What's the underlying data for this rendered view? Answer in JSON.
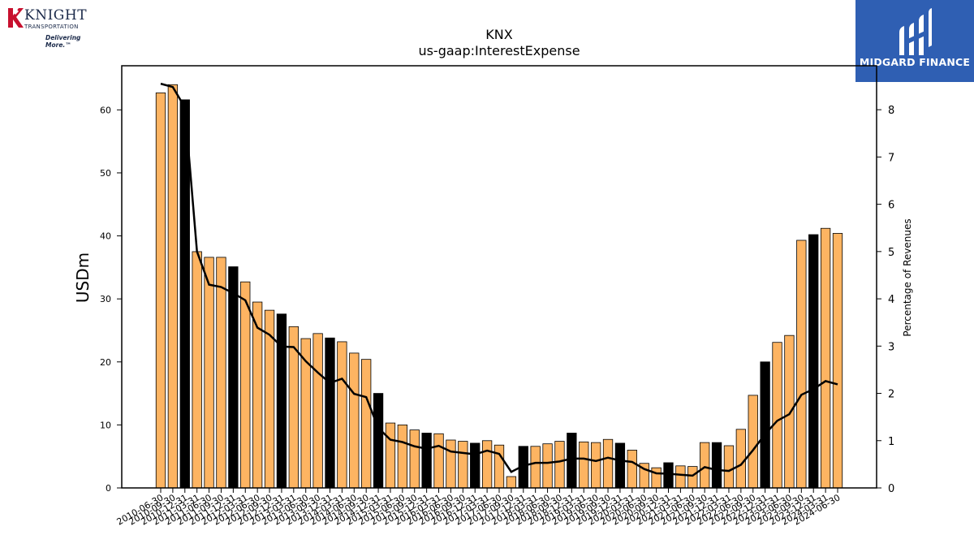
{
  "brand": {
    "company_name": "KNIGHT",
    "company_sub": "TRANSPORTATION",
    "company_tagline": "Delivering More.™",
    "publisher": "MIDGARD FINANCE",
    "colors": {
      "publisher_bg": "#2f5fb3",
      "company_red": "#c8102e",
      "company_navy": "#1b2a4a"
    }
  },
  "chart_data": {
    "type": "bar",
    "title": "KNX",
    "subtitle": "us-gaap:InterestExpense",
    "ylabel": "USDm",
    "y2label": "Percentage of Revenues",
    "ylim": [
      0,
      67
    ],
    "y2lim": [
      0,
      8.93
    ],
    "yticks": [
      0,
      10,
      20,
      30,
      40,
      50,
      60
    ],
    "y2ticks": [
      0,
      1,
      2,
      3,
      4,
      5,
      6,
      7,
      8
    ],
    "colors": {
      "bar": "#fdb462",
      "bar_highlight": "#000000",
      "line": "#000000"
    },
    "highlight_note": "black bars mark fiscal year-end (Dec) values",
    "categories": [
      "2010-06-30",
      "2010-09-30",
      "2010-12-31",
      "2011-03-31",
      "2011-06-30",
      "2011-09-30",
      "2011-12-31",
      "2012-03-31",
      "2012-06-30",
      "2012-09-30",
      "2012-12-31",
      "2013-03-31",
      "2013-06-30",
      "2013-09-30",
      "2013-12-31",
      "2014-03-31",
      "2014-06-30",
      "2014-09-30",
      "2014-12-31",
      "2015-03-31",
      "2015-06-30",
      "2015-09-30",
      "2015-12-31",
      "2016-03-31",
      "2016-06-30",
      "2016-09-30",
      "2016-12-31",
      "2017-03-31",
      "2017-06-30",
      "2017-09-30",
      "2017-12-31",
      "2018-03-31",
      "2018-06-30",
      "2018-09-30",
      "2018-12-31",
      "2019-03-31",
      "2019-06-30",
      "2019-09-30",
      "2019-12-31",
      "2020-03-31",
      "2020-06-30",
      "2020-09-30",
      "2020-12-31",
      "2021-03-31",
      "2021-06-30",
      "2021-09-30",
      "2021-12-31",
      "2022-03-31",
      "2022-06-30",
      "2022-09-30",
      "2022-12-31",
      "2023-03-31",
      "2023-06-30",
      "2023-09-30",
      "2023-12-31",
      "2024-03-31",
      "2024-06-30"
    ],
    "x_tick_labels": [
      "2010-06-30",
      "2010-09-30",
      "2010-12-31",
      "2011-03-31",
      "2011-06-30",
      "2011-09-30",
      "2011-12-31",
      "2012-03-31",
      "2012-06-30",
      "2012-09-30",
      "2012-12-31",
      "2013-03-31",
      "2013-06-30",
      "2013-09-30",
      "2013-12-31",
      "2014-03-31",
      "2014-06-30",
      "2014-09-30",
      "2014-12-31",
      "2015-03-31",
      "2015-06-30",
      "2015-09-30",
      "2015-12-31",
      "2016-03-31",
      "2016-06-30",
      "2016-09-30",
      "2016-12-31",
      "2017-03-31",
      "2017-06-30",
      "2017-09-30",
      "2017-12-31",
      "2018-03-31",
      "2018-06-30",
      "2018-09-30",
      "2018-12-31",
      "2019-03-31",
      "2019-06-30",
      "2019-09-30",
      "2019-12-31",
      "2020-03-31",
      "2020-06-30",
      "2020-09-30",
      "2020-12-31",
      "2021-03-31",
      "2021-06-30",
      "2021-09-30",
      "2021-12-31",
      "2022-03-31",
      "2022-06-30",
      "2022-09-30",
      "2022-12-31",
      "2023-03-31",
      "2023-06-30",
      "2023-09-30",
      "2023-12-31",
      "2024-03-31",
      "2024-06-30"
    ],
    "highlight": [
      false,
      false,
      true,
      false,
      false,
      false,
      true,
      false,
      false,
      false,
      true,
      false,
      false,
      false,
      true,
      false,
      false,
      false,
      true,
      false,
      false,
      false,
      true,
      false,
      false,
      false,
      true,
      false,
      false,
      false,
      true,
      false,
      false,
      false,
      true,
      false,
      false,
      false,
      true,
      false,
      false,
      false,
      true,
      false,
      false,
      false,
      true,
      false,
      false,
      false,
      true,
      false,
      false,
      false,
      true,
      false,
      false
    ],
    "series": [
      {
        "name": "USDm",
        "values": [
          62.7,
          64.0,
          61.6,
          37.5,
          36.6,
          36.6,
          35.1,
          32.7,
          29.5,
          28.2,
          27.6,
          25.6,
          23.7,
          24.5,
          23.8,
          23.2,
          21.4,
          20.4,
          15.0,
          10.3,
          10.0,
          9.2,
          8.7,
          8.6,
          7.6,
          7.4,
          7.1,
          7.5,
          6.8,
          1.8,
          6.6,
          6.6,
          7.0,
          7.4,
          8.7,
          7.3,
          7.2,
          7.7,
          7.1,
          6.0,
          3.9,
          3.2,
          4.0,
          3.5,
          3.4,
          7.2,
          7.2,
          6.7,
          9.3,
          14.7,
          20.0,
          23.1,
          24.2,
          39.3,
          40.2,
          41.2,
          40.4
        ]
      },
      {
        "name": "Percentage of Revenues",
        "values": [
          8.55,
          8.48,
          8.05,
          5.0,
          4.3,
          4.25,
          4.12,
          3.97,
          3.39,
          3.24,
          2.99,
          2.98,
          2.68,
          2.44,
          2.22,
          2.31,
          1.99,
          1.92,
          1.27,
          1.02,
          0.97,
          0.88,
          0.83,
          0.89,
          0.77,
          0.74,
          0.71,
          0.79,
          0.72,
          0.34,
          0.47,
          0.53,
          0.53,
          0.56,
          0.62,
          0.62,
          0.57,
          0.64,
          0.58,
          0.55,
          0.4,
          0.31,
          0.3,
          0.28,
          0.26,
          0.44,
          0.38,
          0.36,
          0.49,
          0.8,
          1.14,
          1.42,
          1.56,
          1.97,
          2.09,
          2.26,
          2.19
        ]
      }
    ]
  }
}
